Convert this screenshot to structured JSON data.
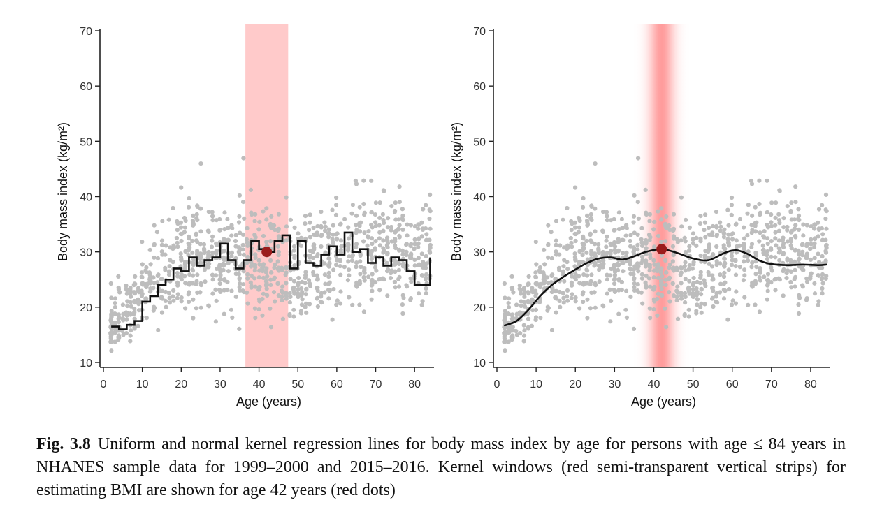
{
  "caption": {
    "label": "Fig. 3.8",
    "text": "Uniform and normal kernel regression lines for body mass index by age for persons with age ≤ 84 years in NHANES sample data for 1999–2000 and 2015–2016. Kernel windows (red semi-transparent vertical strips) for estimating BMI are shown for age 42 years (red dots)"
  },
  "colors": {
    "points": "#bdbdbd",
    "line": "#111111",
    "window": "#ff8a8a",
    "dot": "#9b1c1c"
  },
  "chart_data": [
    {
      "type": "scatter",
      "panel": "left",
      "kernel": "uniform",
      "xlabel": "Age (years)",
      "ylabel": "Body mass index (kg/m²)",
      "xlim": [
        0,
        85
      ],
      "ylim": [
        10,
        70
      ],
      "xticks": [
        0,
        10,
        20,
        30,
        40,
        50,
        60,
        70,
        80
      ],
      "yticks": [
        10,
        20,
        30,
        40,
        50,
        60,
        70
      ],
      "grid": false,
      "window": {
        "from": 36.5,
        "to": 47.5
      },
      "point_of_estimate": {
        "x": 42,
        "y": 30
      },
      "regression_step": [
        [
          2,
          16.5
        ],
        [
          4,
          16
        ],
        [
          6,
          16.8
        ],
        [
          8,
          17.5
        ],
        [
          10,
          21
        ],
        [
          12,
          22
        ],
        [
          14,
          24
        ],
        [
          16,
          25
        ],
        [
          18,
          27
        ],
        [
          20,
          26.5
        ],
        [
          22,
          29
        ],
        [
          24,
          27.5
        ],
        [
          26,
          28.5
        ],
        [
          28,
          29
        ],
        [
          30,
          31.5
        ],
        [
          32,
          28.5
        ],
        [
          34,
          27
        ],
        [
          36,
          28.5
        ],
        [
          38,
          32
        ],
        [
          40,
          30.5
        ],
        [
          42,
          30
        ],
        [
          44,
          32
        ],
        [
          46,
          33
        ],
        [
          48,
          27
        ],
        [
          50,
          32
        ],
        [
          52,
          28
        ],
        [
          54,
          27.5
        ],
        [
          56,
          29.5
        ],
        [
          58,
          31
        ],
        [
          60,
          29.5
        ],
        [
          62,
          33.5
        ],
        [
          64,
          30
        ],
        [
          66,
          30.5
        ],
        [
          68,
          28
        ],
        [
          70,
          29
        ],
        [
          72,
          27.5
        ],
        [
          74,
          29
        ],
        [
          76,
          28.5
        ],
        [
          78,
          26.5
        ],
        [
          80,
          24
        ],
        [
          83,
          24
        ],
        [
          84,
          29
        ]
      ]
    },
    {
      "type": "scatter",
      "panel": "right",
      "kernel": "normal",
      "xlabel": "Age (years)",
      "ylabel": "Body mass index (kg/m²)",
      "xlim": [
        0,
        85
      ],
      "ylim": [
        10,
        70
      ],
      "xticks": [
        0,
        10,
        20,
        30,
        40,
        50,
        60,
        70,
        80
      ],
      "yticks": [
        10,
        20,
        30,
        40,
        50,
        60,
        70
      ],
      "grid": false,
      "window": {
        "center": 42,
        "sd": 2.2
      },
      "point_of_estimate": {
        "x": 42,
        "y": 30.5
      },
      "regression_smooth": [
        [
          2,
          16.7
        ],
        [
          5,
          17.5
        ],
        [
          8,
          19.5
        ],
        [
          11,
          22
        ],
        [
          14,
          24
        ],
        [
          17,
          25.5
        ],
        [
          20,
          26.8
        ],
        [
          23,
          28
        ],
        [
          26,
          28.8
        ],
        [
          29,
          29
        ],
        [
          32,
          28.6
        ],
        [
          35,
          29.2
        ],
        [
          38,
          30
        ],
        [
          42,
          30.5
        ],
        [
          46,
          29.8
        ],
        [
          50,
          28.8
        ],
        [
          54,
          28.5
        ],
        [
          58,
          29.8
        ],
        [
          61,
          30.3
        ],
        [
          64,
          29.6
        ],
        [
          67,
          28.4
        ],
        [
          70,
          27.8
        ],
        [
          74,
          27.6
        ],
        [
          78,
          27.7
        ],
        [
          82,
          27.6
        ],
        [
          84,
          27.7
        ]
      ]
    }
  ]
}
